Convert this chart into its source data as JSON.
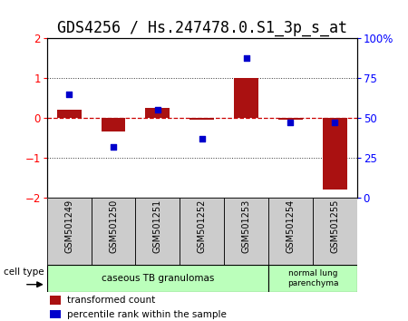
{
  "title": "GDS4256 / Hs.247478.0.S1_3p_s_at",
  "samples": [
    "GSM501249",
    "GSM501250",
    "GSM501251",
    "GSM501252",
    "GSM501253",
    "GSM501254",
    "GSM501255"
  ],
  "transformed_count": [
    0.2,
    -0.35,
    0.25,
    -0.05,
    1.0,
    -0.05,
    -1.8
  ],
  "percentile_rank": [
    65,
    32,
    55,
    37,
    88,
    47,
    47
  ],
  "ylim_left": [
    -2,
    2
  ],
  "ylim_right": [
    0,
    100
  ],
  "yticks_left": [
    -2,
    -1,
    0,
    1,
    2
  ],
  "yticks_right": [
    0,
    25,
    50,
    75,
    100
  ],
  "ytick_labels_right": [
    "0",
    "25",
    "50",
    "75",
    "100%"
  ],
  "bar_color": "#aa1111",
  "scatter_color": "#0000cc",
  "zero_line_color": "#cc0000",
  "dot_line_color": "#333333",
  "group1_label": "caseous TB granulomas",
  "group2_label": "normal lung\nparenchyma",
  "group1_color": "#bbffbb",
  "group2_color": "#bbffbb",
  "cell_type_label": "cell type",
  "legend_bar_label": "transformed count",
  "legend_scatter_label": "percentile rank within the sample",
  "title_fontsize": 12,
  "tick_fontsize": 8.5,
  "label_fontsize": 8,
  "sample_label_bg": "#cccccc"
}
